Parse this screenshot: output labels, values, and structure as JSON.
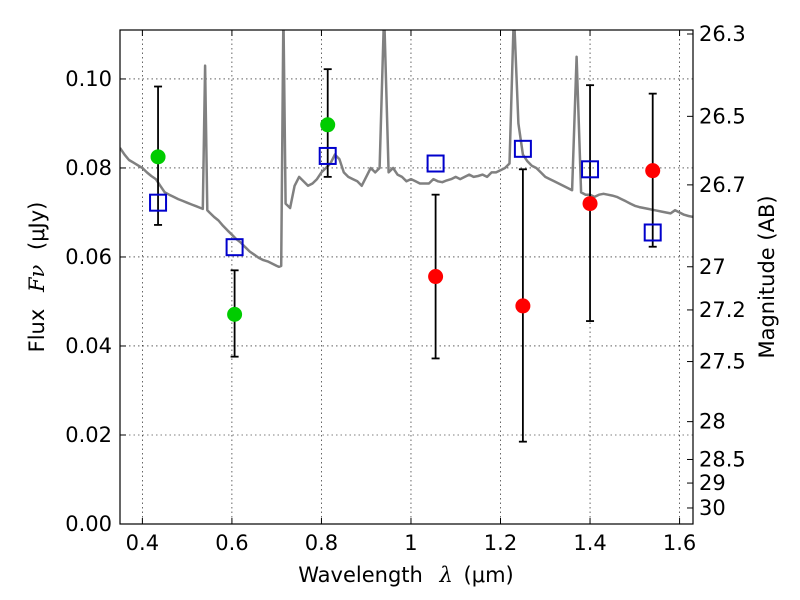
{
  "chart_data": {
    "type": "scatter",
    "xlabel": {
      "pre": "Wavelength",
      "sym": "λ",
      "unit": "(μm)"
    },
    "ylabel": {
      "pre": "Flux",
      "sym": "Fν",
      "unit": "(μJy)"
    },
    "y2label": "Magnitude (AB)",
    "xlim": [
      0.35,
      1.63
    ],
    "ylim": [
      0.0,
      0.111
    ],
    "x_ticks": [
      0.4,
      0.6,
      0.8,
      1.0,
      1.2,
      1.4,
      1.6
    ],
    "x_tick_labels": [
      "0.4",
      "0.6",
      "0.8",
      "1",
      "1.2",
      "1.4",
      "1.6"
    ],
    "y_ticks": [
      0.0,
      0.02,
      0.04,
      0.06,
      0.08,
      0.1
    ],
    "y_tick_labels": [
      "0.00",
      "0.02",
      "0.04",
      "0.06",
      "0.08",
      "0.10"
    ],
    "y2_ticks": [
      {
        "label": "26.3",
        "flux": 0.1101
      },
      {
        "label": "26.5",
        "flux": 0.0916
      },
      {
        "label": "26.7",
        "flux": 0.0762
      },
      {
        "label": "27",
        "flux": 0.0578
      },
      {
        "label": "27.2",
        "flux": 0.0481
      },
      {
        "label": "27.5",
        "flux": 0.0365
      },
      {
        "label": "28",
        "flux": 0.023
      },
      {
        "label": "28.5",
        "flux": 0.0145
      },
      {
        "label": "29",
        "flux": 0.0092
      },
      {
        "label": "30",
        "flux": 0.0036
      }
    ],
    "grid": true,
    "colors": {
      "spectrum": "#808080",
      "green_points": "#00cc00",
      "red_points": "#ff0000",
      "model_squares": "#0000cc",
      "errorbars": "#000000"
    },
    "series": [
      {
        "marker": "circle-green",
        "points": [
          {
            "x": 0.435,
            "y": 0.0825,
            "yerr_low": 0.0672,
            "yerr_high": 0.0983
          },
          {
            "x": 0.606,
            "y": 0.0471,
            "yerr_low": 0.0376,
            "yerr_high": 0.057
          },
          {
            "x": 0.814,
            "y": 0.0897,
            "yerr_low": 0.078,
            "yerr_high": 0.1022
          }
        ]
      },
      {
        "marker": "circle-red",
        "points": [
          {
            "x": 1.055,
            "y": 0.0556,
            "yerr_low": 0.0372,
            "yerr_high": 0.074
          },
          {
            "x": 1.25,
            "y": 0.049,
            "yerr_low": 0.0185,
            "yerr_high": 0.0797
          },
          {
            "x": 1.4,
            "y": 0.072,
            "yerr_low": 0.0456,
            "yerr_high": 0.0986
          },
          {
            "x": 1.54,
            "y": 0.0794,
            "yerr_low": 0.0623,
            "yerr_high": 0.0967
          }
        ]
      },
      {
        "marker": "square-blue",
        "points": [
          {
            "x": 0.435,
            "y": 0.0722
          },
          {
            "x": 0.606,
            "y": 0.0622
          },
          {
            "x": 0.814,
            "y": 0.0827
          },
          {
            "x": 1.055,
            "y": 0.081
          },
          {
            "x": 1.25,
            "y": 0.0843
          },
          {
            "x": 1.4,
            "y": 0.0797
          },
          {
            "x": 1.54,
            "y": 0.0655
          }
        ]
      },
      {
        "marker": "line-spectrum",
        "x": [
          0.35,
          0.36,
          0.37,
          0.38,
          0.39,
          0.4,
          0.41,
          0.42,
          0.43,
          0.44,
          0.45,
          0.46,
          0.47,
          0.48,
          0.49,
          0.5,
          0.51,
          0.52,
          0.53,
          0.535,
          0.54,
          0.545,
          0.55,
          0.56,
          0.57,
          0.58,
          0.59,
          0.6,
          0.61,
          0.62,
          0.63,
          0.64,
          0.65,
          0.66,
          0.67,
          0.68,
          0.69,
          0.7,
          0.705,
          0.71,
          0.715,
          0.72,
          0.73,
          0.74,
          0.75,
          0.76,
          0.77,
          0.78,
          0.79,
          0.8,
          0.81,
          0.82,
          0.83,
          0.84,
          0.85,
          0.86,
          0.87,
          0.88,
          0.89,
          0.9,
          0.91,
          0.92,
          0.93,
          0.94,
          0.95,
          0.96,
          0.97,
          0.98,
          0.99,
          1.0,
          1.01,
          1.02,
          1.03,
          1.04,
          1.05,
          1.06,
          1.07,
          1.08,
          1.09,
          1.1,
          1.11,
          1.12,
          1.13,
          1.14,
          1.15,
          1.16,
          1.17,
          1.18,
          1.19,
          1.2,
          1.21,
          1.22,
          1.23,
          1.24,
          1.25,
          1.26,
          1.27,
          1.28,
          1.29,
          1.3,
          1.31,
          1.32,
          1.33,
          1.34,
          1.35,
          1.36,
          1.37,
          1.38,
          1.39,
          1.4,
          1.41,
          1.42,
          1.43,
          1.44,
          1.45,
          1.46,
          1.47,
          1.48,
          1.49,
          1.5,
          1.51,
          1.52,
          1.53,
          1.54,
          1.55,
          1.56,
          1.57,
          1.58,
          1.59,
          1.6,
          1.61,
          1.62,
          1.63
        ],
        "y": [
          0.0845,
          0.083,
          0.0818,
          0.0812,
          0.0806,
          0.08,
          0.079,
          0.0782,
          0.0775,
          0.076,
          0.0745,
          0.074,
          0.0735,
          0.073,
          0.0726,
          0.0722,
          0.0718,
          0.0714,
          0.071,
          0.0708,
          0.103,
          0.0705,
          0.07,
          0.069,
          0.0682,
          0.067,
          0.066,
          0.065,
          0.064,
          0.0632,
          0.0622,
          0.0612,
          0.0605,
          0.0598,
          0.0593,
          0.059,
          0.0585,
          0.058,
          0.0578,
          0.058,
          0.115,
          0.072,
          0.071,
          0.076,
          0.078,
          0.077,
          0.076,
          0.0765,
          0.0775,
          0.079,
          0.08,
          0.081,
          0.083,
          0.082,
          0.079,
          0.078,
          0.0775,
          0.077,
          0.076,
          0.078,
          0.08,
          0.079,
          0.08,
          0.115,
          0.079,
          0.08,
          0.0785,
          0.078,
          0.077,
          0.0775,
          0.077,
          0.0765,
          0.0765,
          0.0765,
          0.0775,
          0.077,
          0.0768,
          0.0772,
          0.0775,
          0.078,
          0.0775,
          0.078,
          0.0785,
          0.078,
          0.0782,
          0.0785,
          0.078,
          0.079,
          0.079,
          0.0795,
          0.08,
          0.081,
          0.115,
          0.09,
          0.083,
          0.0815,
          0.0805,
          0.08,
          0.079,
          0.078,
          0.0775,
          0.077,
          0.0765,
          0.076,
          0.0755,
          0.075,
          0.105,
          0.0745,
          0.074,
          0.074,
          0.0735,
          0.074,
          0.0742,
          0.074,
          0.0738,
          0.0735,
          0.073,
          0.0725,
          0.072,
          0.0715,
          0.0712,
          0.071,
          0.0708,
          0.0706,
          0.0704,
          0.0702,
          0.07,
          0.0698,
          0.0705,
          0.07,
          0.0695,
          0.0692,
          0.069
        ]
      }
    ]
  }
}
